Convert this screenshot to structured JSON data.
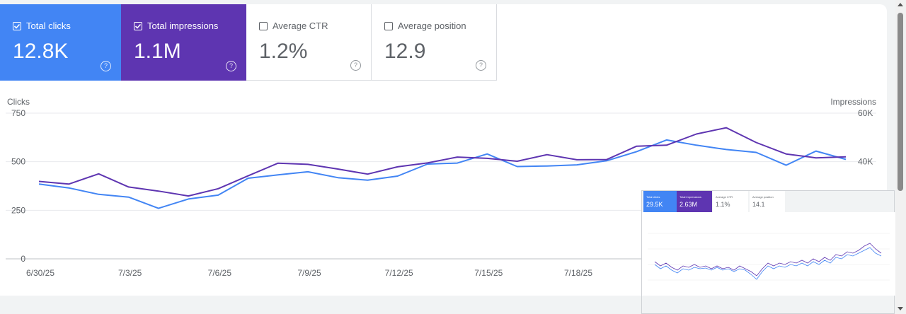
{
  "metrics": {
    "clicks": {
      "label": "Total clicks",
      "value": "12.8K",
      "checked": true
    },
    "impressions": {
      "label": "Total impressions",
      "value": "1.1M",
      "checked": true
    },
    "ctr": {
      "label": "Average CTR",
      "value": "1.2%",
      "checked": false
    },
    "position": {
      "label": "Average position",
      "value": "12.9",
      "checked": false
    }
  },
  "help_glyph": "?",
  "colors": {
    "clicks": "#4285f4",
    "impressions": "#5e35b1"
  },
  "chart_data": {
    "type": "line",
    "ylabel_left": "Clicks",
    "ylabel_right": "Impressions",
    "y_left_ticks": [
      "750",
      "500",
      "250",
      "0"
    ],
    "y_right_ticks": [
      "60K",
      "40K"
    ],
    "x_tick_labels": [
      "6/30/25",
      "7/3/25",
      "7/6/25",
      "7/9/25",
      "7/12/25",
      "7/15/25",
      "7/18/25"
    ],
    "ylim_left": [
      0,
      750
    ],
    "ylim_right": [
      0,
      60000
    ],
    "grid": true,
    "series": [
      {
        "name": "Clicks",
        "values": [
          385,
          365,
          332,
          318,
          260,
          308,
          328,
          415,
          432,
          448,
          418,
          405,
          426,
          488,
          493,
          540,
          475,
          478,
          484,
          505,
          552,
          612,
          585,
          563,
          548,
          482,
          555,
          512
        ]
      },
      {
        "name": "Impressions",
        "values": [
          31900,
          30800,
          35000,
          29600,
          27900,
          25900,
          28900,
          34200,
          39400,
          38900,
          37000,
          34900,
          37900,
          39500,
          41900,
          41400,
          40200,
          42900,
          40800,
          40900,
          46400,
          46800,
          51400,
          54000,
          47900,
          43200,
          41600,
          42000
        ]
      }
    ]
  },
  "thumbnail": {
    "metrics": [
      {
        "label": "Total clicks",
        "value": "29.5K"
      },
      {
        "label": "Total impressions",
        "value": "2.63M"
      },
      {
        "label": "Average CTR",
        "value": "1.1%"
      },
      {
        "label": "Average position",
        "value": "14.1"
      }
    ]
  }
}
